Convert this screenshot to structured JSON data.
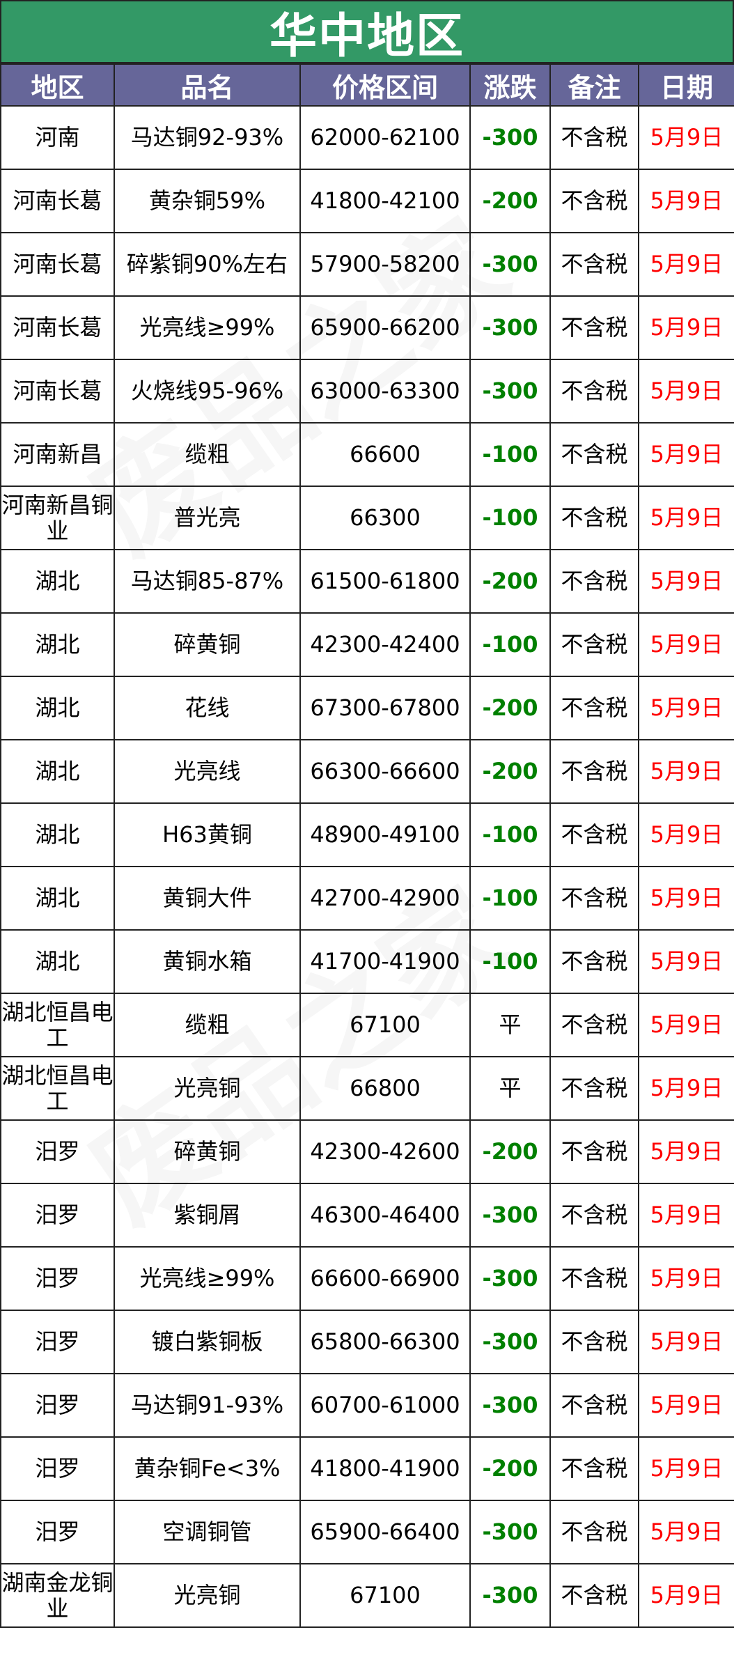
{
  "title": "华中地区",
  "colors": {
    "title_bg": "#339966",
    "header_bg": "#666699",
    "down": "#008000",
    "date": "#ff0000"
  },
  "headers": [
    "地区",
    "品名",
    "价格区间",
    "涨跌",
    "备注",
    "日期"
  ],
  "rows": [
    [
      "河南",
      "马达铜92-93%",
      "62000-62100",
      "-300",
      "不含税",
      "5月9日"
    ],
    [
      "河南长葛",
      "黄杂铜59%",
      "41800-42100",
      "-200",
      "不含税",
      "5月9日"
    ],
    [
      "河南长葛",
      "碎紫铜90%左右",
      "57900-58200",
      "-300",
      "不含税",
      "5月9日"
    ],
    [
      "河南长葛",
      "光亮线≥99%",
      "65900-66200",
      "-300",
      "不含税",
      "5月9日"
    ],
    [
      "河南长葛",
      "火烧线95-96%",
      "63000-63300",
      "-300",
      "不含税",
      "5月9日"
    ],
    [
      "河南新昌",
      "缆粗",
      "66600",
      "-100",
      "不含税",
      "5月9日"
    ],
    [
      "河南新昌铜业",
      "普光亮",
      "66300",
      "-100",
      "不含税",
      "5月9日"
    ],
    [
      "湖北",
      "马达铜85-87%",
      "61500-61800",
      "-200",
      "不含税",
      "5月9日"
    ],
    [
      "湖北",
      "碎黄铜",
      "42300-42400",
      "-100",
      "不含税",
      "5月9日"
    ],
    [
      "湖北",
      "花线",
      "67300-67800",
      "-200",
      "不含税",
      "5月9日"
    ],
    [
      "湖北",
      "光亮线",
      "66300-66600",
      "-200",
      "不含税",
      "5月9日"
    ],
    [
      "湖北",
      "H63黄铜",
      "48900-49100",
      "-100",
      "不含税",
      "5月9日"
    ],
    [
      "湖北",
      "黄铜大件",
      "42700-42900",
      "-100",
      "不含税",
      "5月9日"
    ],
    [
      "湖北",
      "黄铜水箱",
      "41700-41900",
      "-100",
      "不含税",
      "5月9日"
    ],
    [
      "湖北恒昌电工",
      "缆粗",
      "67100",
      "平",
      "不含税",
      "5月9日"
    ],
    [
      "湖北恒昌电工",
      "光亮铜",
      "66800",
      "平",
      "不含税",
      "5月9日"
    ],
    [
      "汨罗",
      "碎黄铜",
      "42300-42600",
      "-200",
      "不含税",
      "5月9日"
    ],
    [
      "汨罗",
      "紫铜屑",
      "46300-46400",
      "-300",
      "不含税",
      "5月9日"
    ],
    [
      "汨罗",
      "光亮线≥99%",
      "66600-66900",
      "-300",
      "不含税",
      "5月9日"
    ],
    [
      "汨罗",
      "镀白紫铜板",
      "65800-66300",
      "-300",
      "不含税",
      "5月9日"
    ],
    [
      "汨罗",
      "马达铜91-93%",
      "60700-61000",
      "-300",
      "不含税",
      "5月9日"
    ],
    [
      "汨罗",
      "黄杂铜Fe<3%",
      "41800-41900",
      "-200",
      "不含税",
      "5月9日"
    ],
    [
      "汨罗",
      "空调铜管",
      "65900-66400",
      "-300",
      "不含税",
      "5月9日"
    ],
    [
      "湖南金龙铜业",
      "光亮铜",
      "67100",
      "-300",
      "不含税",
      "5月9日"
    ]
  ],
  "watermark": "废品之家"
}
